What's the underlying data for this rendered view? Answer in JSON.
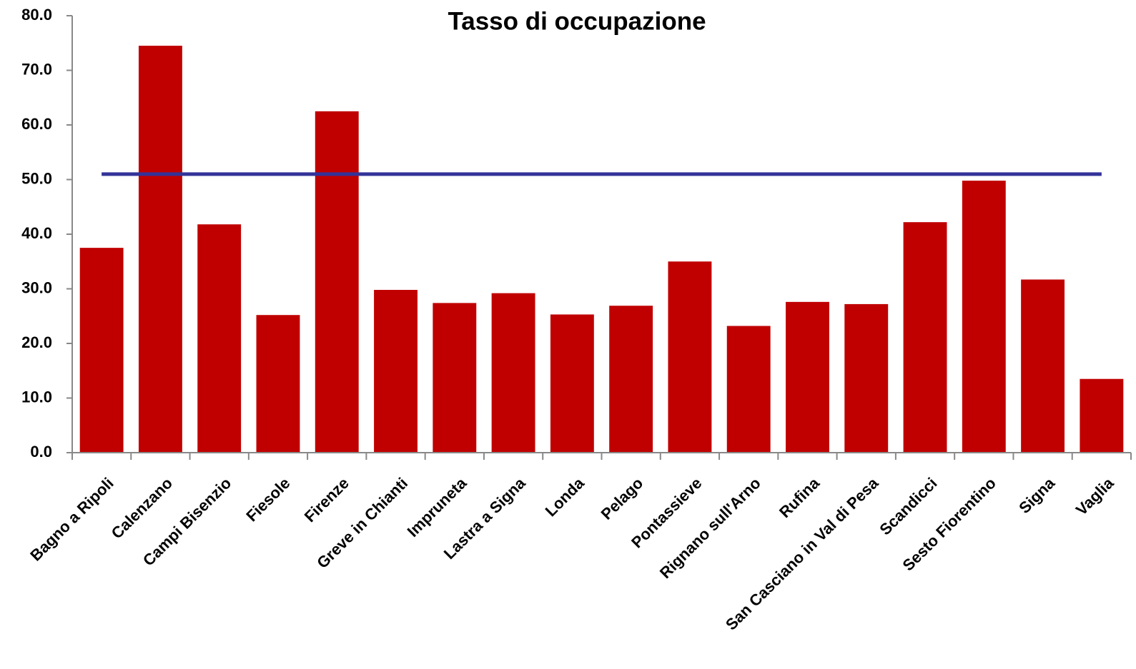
{
  "chart_data": {
    "type": "bar",
    "title": "Tasso di occupazione",
    "categories": [
      "Bagno a Ripoli",
      "Calenzano",
      "Campi Bisenzio",
      "Fiesole",
      "Firenze",
      "Greve in Chianti",
      "Impruneta",
      "Lastra a Signa",
      "Londa",
      "Pelago",
      "Pontassieve",
      "Rignano sull'Arno",
      "Rufina",
      "San Casciano in Val di Pesa",
      "Scandicci",
      "Sesto Fiorentino",
      "Signa",
      "Vaglia"
    ],
    "values": [
      37.5,
      74.5,
      41.8,
      25.2,
      62.5,
      29.8,
      27.4,
      29.2,
      25.3,
      26.9,
      35.0,
      23.2,
      27.6,
      27.2,
      42.2,
      49.8,
      31.7,
      13.5
    ],
    "color": "#c00000",
    "reference_line": {
      "value": 51.0,
      "color": "#333399"
    },
    "ylim": [
      0,
      80
    ],
    "yticks": [
      {
        "value": 0,
        "label": "0.0"
      },
      {
        "value": 10,
        "label": "10.0"
      },
      {
        "value": 20,
        "label": "20.0"
      },
      {
        "value": 30,
        "label": "30.0"
      },
      {
        "value": 40,
        "label": "40.0"
      },
      {
        "value": 50,
        "label": "50.0"
      },
      {
        "value": 60,
        "label": "60.0"
      },
      {
        "value": 70,
        "label": "70.0"
      },
      {
        "value": 80,
        "label": "80.0"
      }
    ],
    "grid": false
  }
}
